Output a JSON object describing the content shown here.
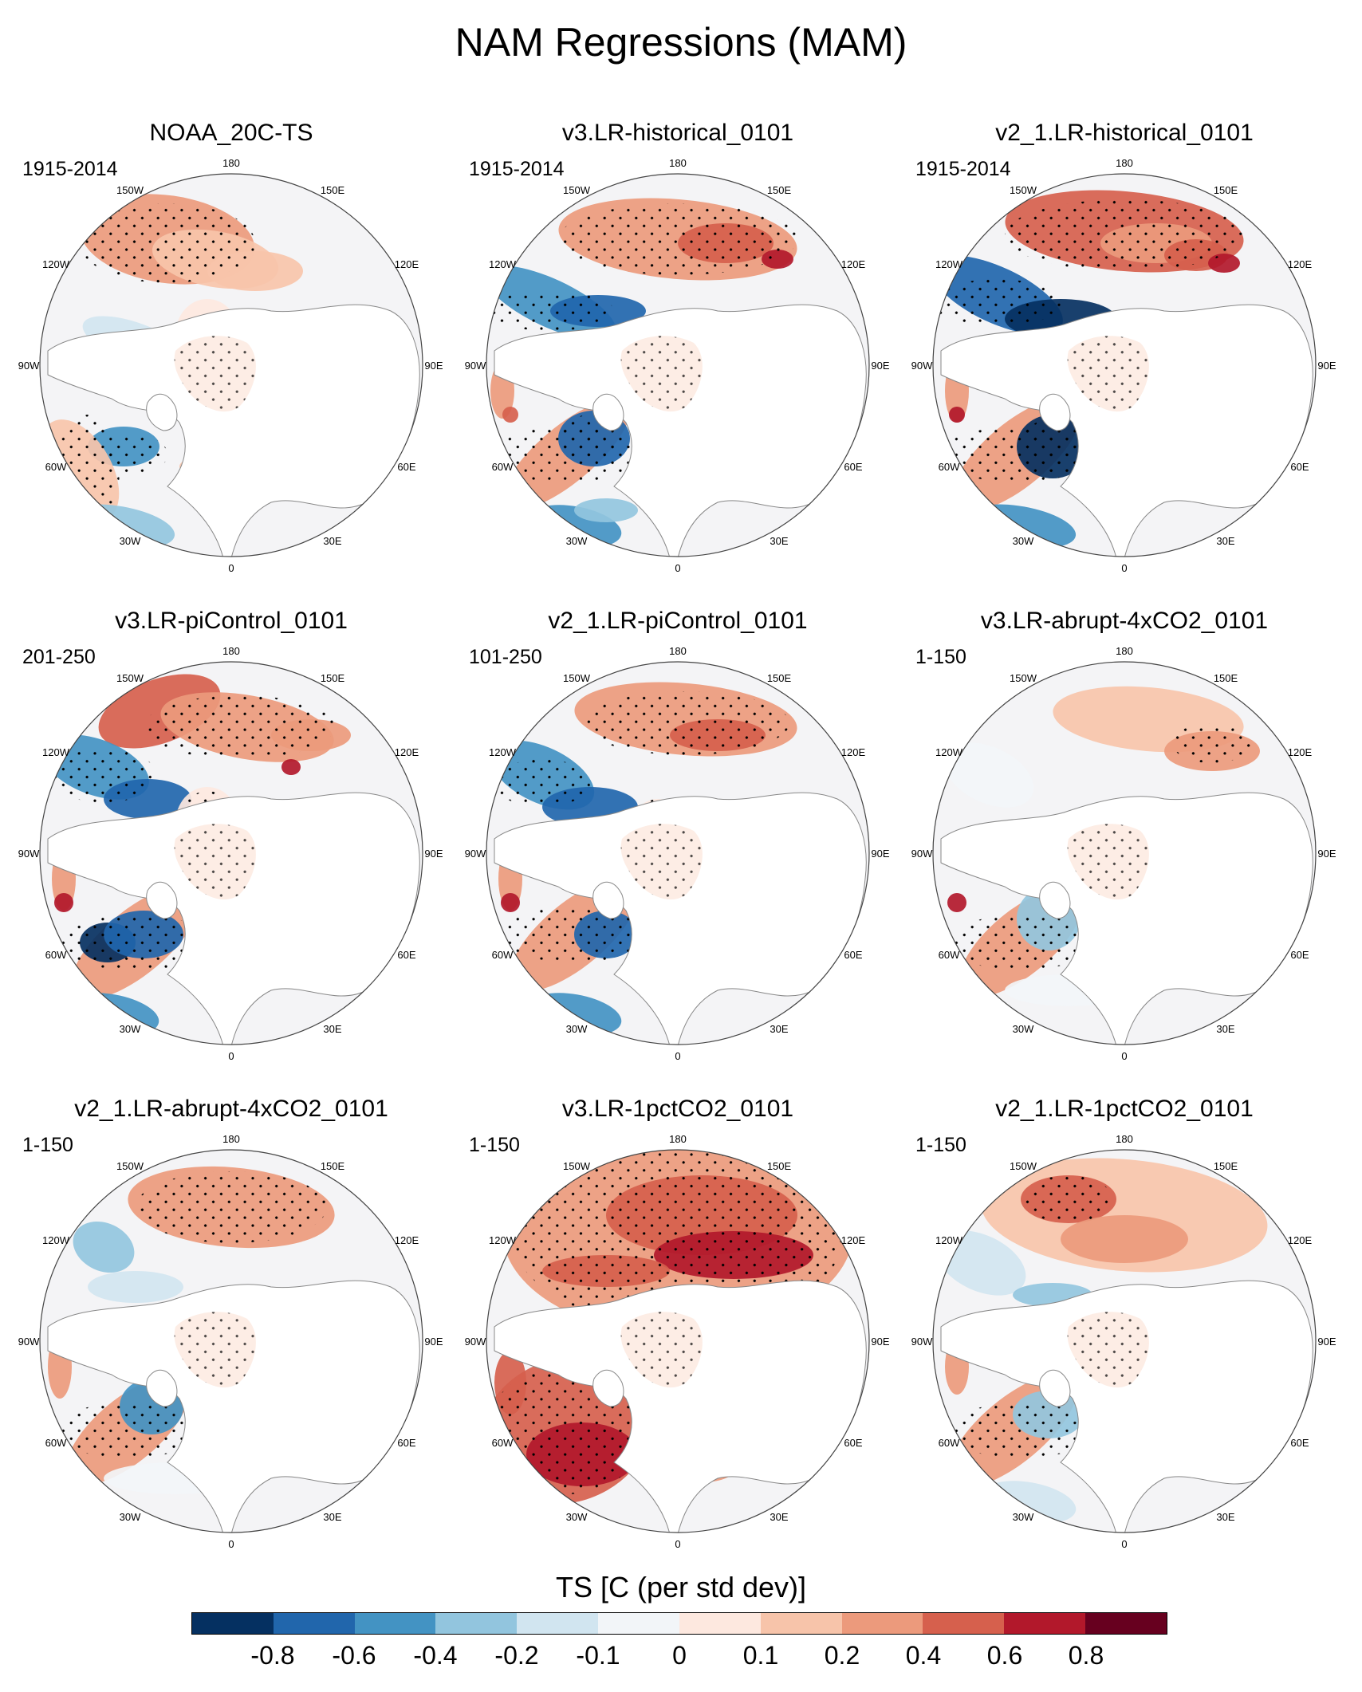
{
  "title": "NAM Regressions (MAM)",
  "longitude_labels": [
    "180",
    "150E",
    "120E",
    "90E",
    "60E",
    "30E",
    "0",
    "30W",
    "60W",
    "90W",
    "120W",
    "150W"
  ],
  "panels": [
    {
      "title": "NOAA_20C-TS",
      "period": "1915-2014"
    },
    {
      "title": "v3.LR-historical_0101",
      "period": "1915-2014"
    },
    {
      "title": "v2_1.LR-historical_0101",
      "period": "1915-2014"
    },
    {
      "title": "v3.LR-piControl_0101",
      "period": "201-250"
    },
    {
      "title": "v2_1.LR-piControl_0101",
      "period": "101-250"
    },
    {
      "title": "v3.LR-abrupt-4xCO2_0101",
      "period": "1-150"
    },
    {
      "title": "v2_1.LR-abrupt-4xCO2_0101",
      "period": "1-150"
    },
    {
      "title": "v3.LR-1pctCO2_0101",
      "period": "1-150"
    },
    {
      "title": "v2_1.LR-1pctCO2_0101",
      "period": "1-150"
    }
  ],
  "colorbar": {
    "title": "TS [C (per std dev)]",
    "colors": [
      "#053061",
      "#2166ac",
      "#4393c3",
      "#92c5de",
      "#d1e5f0",
      "#f2f5f8",
      "#fde8df",
      "#f7c4aa",
      "#ec9a7c",
      "#d6604d",
      "#b2182b",
      "#67001f"
    ],
    "labels": [
      "-0.8",
      "-0.6",
      "-0.4",
      "-0.2",
      "-0.1",
      "0",
      "0.1",
      "0.2",
      "0.4",
      "0.6",
      "0.8"
    ]
  }
}
